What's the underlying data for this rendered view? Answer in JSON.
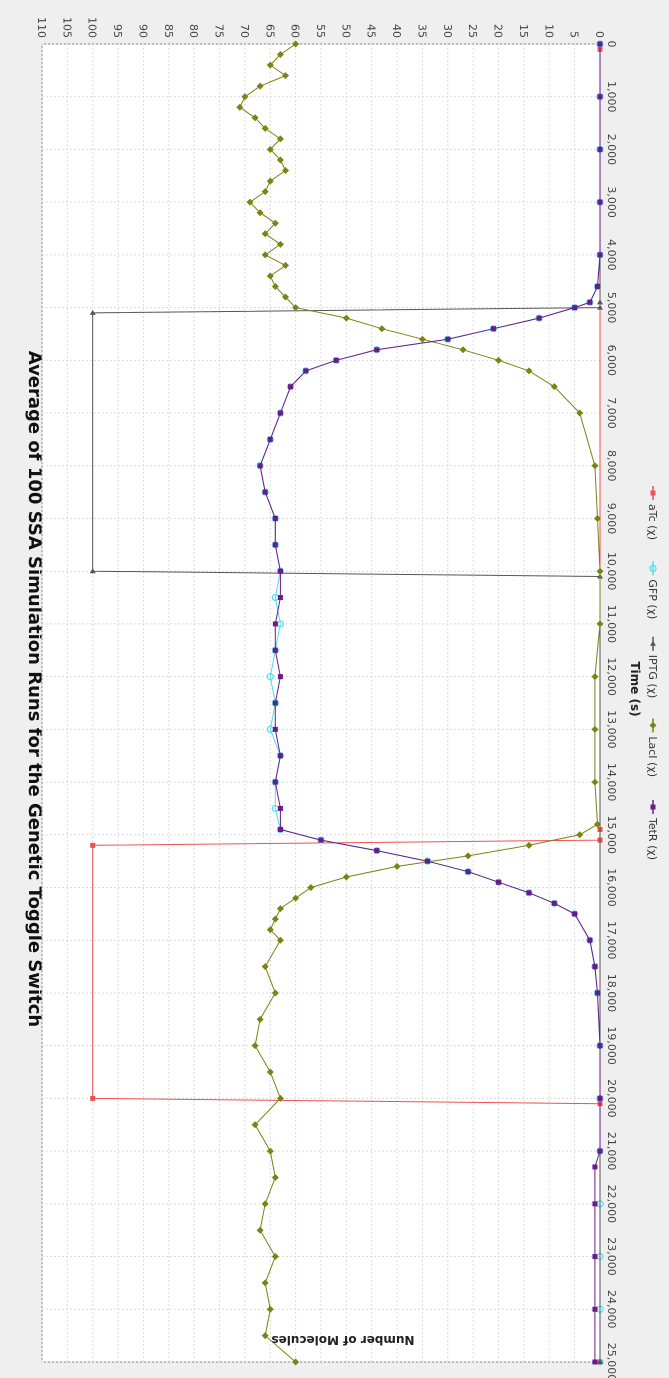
{
  "chart_data": {
    "type": "line",
    "title": "Average of 100 SSA Simulation Runs for the Genetic Toggle Switch",
    "xlabel": "Time (s)",
    "ylabel": "Number of Molecules",
    "xlim": [
      0,
      25000
    ],
    "ylim": [
      0,
      110
    ],
    "x_ticks": [
      "0",
      "1,000",
      "2,000",
      "3,000",
      "4,000",
      "5,000",
      "6,000",
      "7,000",
      "8,000",
      "9,000",
      "10,000",
      "11,000",
      "12,000",
      "13,000",
      "14,000",
      "15,000",
      "16,000",
      "17,000",
      "18,000",
      "19,000",
      "20,000",
      "21,000",
      "22,000",
      "23,000",
      "24,000",
      "25,000"
    ],
    "y_ticks": [
      "0",
      "5",
      "10",
      "15",
      "20",
      "25",
      "30",
      "35",
      "40",
      "45",
      "50",
      "55",
      "60",
      "65",
      "70",
      "75",
      "80",
      "85",
      "90",
      "95",
      "100",
      "105",
      "110"
    ],
    "grid": true,
    "legend_position": "bottom",
    "rotation": "rotated 90 degrees clockwise",
    "series": [
      {
        "name": "aTc (χ)",
        "color": "#f05050",
        "marker": "square",
        "x": [
          0,
          100,
          14900,
          15100,
          15200,
          20000,
          20100,
          25000
        ],
        "y": [
          0,
          0,
          0,
          0,
          100,
          100,
          0,
          0
        ]
      },
      {
        "name": "GFP (χ)",
        "color": "#55ddee",
        "marker": "circle",
        "x": [
          0,
          1000,
          2000,
          3000,
          4000,
          4600,
          4900,
          5000,
          5200,
          5400,
          5600,
          5800,
          6000,
          6200,
          6500,
          7000,
          7500,
          8000,
          8500,
          9000,
          9500,
          10000,
          10500,
          11000,
          11500,
          12000,
          12500,
          13000,
          13500,
          14000,
          14500,
          14900,
          15100,
          15300,
          15500,
          15700,
          15900,
          16100,
          16300,
          16500,
          17000,
          17500,
          18000,
          19000,
          20000,
          21000,
          22000,
          23000,
          24000,
          25000
        ],
        "y": [
          0,
          0,
          0,
          0,
          0,
          0.5,
          2,
          5,
          12,
          21,
          30,
          44,
          52,
          58,
          61,
          63,
          65,
          67,
          66,
          64,
          64,
          63,
          64,
          63,
          64,
          65,
          64,
          65,
          63,
          64,
          64,
          63,
          55,
          44,
          34,
          26,
          20,
          14,
          9,
          5,
          2,
          1,
          0.5,
          0,
          0,
          0,
          0,
          0,
          0,
          0
        ]
      },
      {
        "name": "IPTG (χ)",
        "color": "#555555",
        "marker": "triangle",
        "x": [
          0,
          4900,
          5000,
          5100,
          10000,
          10100,
          25000
        ],
        "y": [
          0,
          0,
          0,
          100,
          100,
          0,
          0
        ]
      },
      {
        "name": "LacI (χ)",
        "color": "#7d8214",
        "marker": "diamond",
        "x": [
          0,
          200,
          400,
          600,
          800,
          1000,
          1200,
          1400,
          1600,
          1800,
          2000,
          2200,
          2400,
          2600,
          2800,
          3000,
          3200,
          3400,
          3600,
          3800,
          4000,
          4200,
          4400,
          4600,
          4800,
          5000,
          5200,
          5400,
          5600,
          5800,
          6000,
          6200,
          6500,
          7000,
          8000,
          9000,
          10000,
          11000,
          12000,
          13000,
          14000,
          14800,
          15000,
          15200,
          15400,
          15600,
          15800,
          16000,
          16200,
          16400,
          16600,
          16800,
          17000,
          17500,
          18000,
          18500,
          19000,
          19500,
          20000,
          20500,
          21000,
          21500,
          22000,
          22500,
          23000,
          23500,
          24000,
          24500,
          25000
        ],
        "y": [
          60,
          63,
          65,
          62,
          67,
          70,
          71,
          68,
          66,
          63,
          65,
          63,
          62,
          65,
          66,
          69,
          67,
          64,
          66,
          63,
          66,
          62,
          65,
          64,
          62,
          60,
          50,
          43,
          35,
          27,
          20,
          14,
          9,
          4,
          1,
          0.5,
          0,
          0,
          1,
          1,
          1,
          0.5,
          4,
          14,
          26,
          40,
          50,
          57,
          60,
          63,
          64,
          65,
          63,
          66,
          64,
          67,
          68,
          65,
          63,
          68,
          65,
          64,
          66,
          67,
          64,
          66,
          65,
          66,
          60
        ]
      },
      {
        "name": "TetR (χ)",
        "color": "#6a1a8a",
        "marker": "square",
        "x": [
          0,
          1000,
          2000,
          3000,
          4000,
          4600,
          4900,
          5000,
          5200,
          5400,
          5600,
          5800,
          6000,
          6200,
          6500,
          7000,
          7500,
          8000,
          8500,
          9000,
          9500,
          10000,
          10500,
          11000,
          11500,
          12000,
          12500,
          13000,
          13500,
          14000,
          14500,
          14900,
          15100,
          15300,
          15500,
          15700,
          15900,
          16100,
          16300,
          16500,
          17000,
          17500,
          18000,
          19000,
          20000,
          21000,
          21300,
          22000,
          23000,
          24000,
          25000
        ],
        "y": [
          0,
          0,
          0,
          0,
          0,
          0.5,
          2,
          5,
          12,
          21,
          30,
          44,
          52,
          58,
          61,
          63,
          65,
          67,
          66,
          64,
          64,
          63,
          63,
          64,
          64,
          63,
          64,
          64,
          63,
          64,
          63,
          63,
          55,
          44,
          34,
          26,
          20,
          14,
          9,
          5,
          2,
          1,
          0.5,
          0,
          0,
          0,
          1,
          1,
          1,
          1,
          1
        ]
      }
    ]
  }
}
